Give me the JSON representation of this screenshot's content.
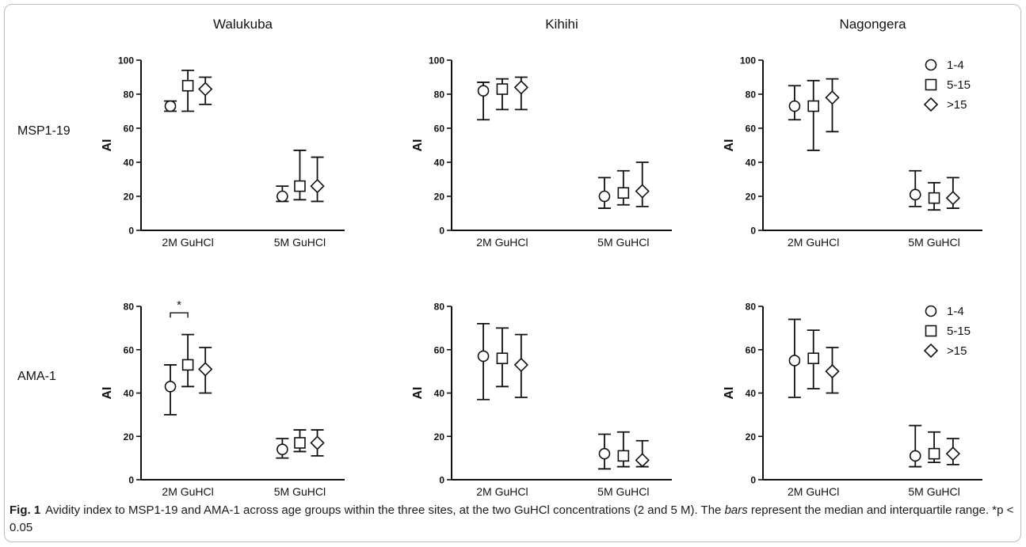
{
  "sites": [
    "Walukuba",
    "Kihihi",
    "Nagongera"
  ],
  "rows": [
    "MSP1-19",
    "AMA-1"
  ],
  "legend": [
    "1-4",
    "5-15",
    ">15"
  ],
  "legend_markers": [
    "circle-marker-icon",
    "square-marker-icon",
    "diamond-marker-icon"
  ],
  "caption": {
    "label": "Fig. 1",
    "part1": "Avidity index to MSP1-19 and AMA-1 across age groups within the three sites, at the two GuHCl concentrations (2 and 5 M). The ",
    "em": "bars",
    "part2": " represent the median and interquartile range. *p < 0.05"
  },
  "chart_data": [
    {
      "type": "scatter",
      "site": "Walukuba",
      "row": "MSP1-19",
      "ylabel": "AI",
      "categories": [
        "2M GuHCl",
        "5M GuHCl"
      ],
      "ylim": [
        0,
        100
      ],
      "yticks": [
        0,
        20,
        40,
        60,
        80,
        100
      ],
      "legend": false,
      "series": [
        {
          "name": "1-4",
          "median": [
            73,
            20
          ],
          "q1": [
            70,
            17
          ],
          "q3": [
            76,
            26
          ]
        },
        {
          "name": "5-15",
          "median": [
            85,
            26
          ],
          "q1": [
            70,
            18
          ],
          "q3": [
            94,
            47
          ]
        },
        {
          "name": ">15",
          "median": [
            83,
            26
          ],
          "q1": [
            74,
            17
          ],
          "q3": [
            90,
            43
          ]
        }
      ]
    },
    {
      "type": "scatter",
      "site": "Kihihi",
      "row": "MSP1-19",
      "ylabel": "AI",
      "categories": [
        "2M GuHCl",
        "5M GuHCl"
      ],
      "ylim": [
        0,
        100
      ],
      "yticks": [
        0,
        20,
        40,
        60,
        80,
        100
      ],
      "legend": false,
      "series": [
        {
          "name": "1-4",
          "median": [
            82,
            20
          ],
          "q1": [
            65,
            13
          ],
          "q3": [
            87,
            31
          ]
        },
        {
          "name": "5-15",
          "median": [
            83,
            22
          ],
          "q1": [
            71,
            15
          ],
          "q3": [
            89,
            35
          ]
        },
        {
          "name": ">15",
          "median": [
            84,
            23
          ],
          "q1": [
            71,
            14
          ],
          "q3": [
            90,
            40
          ]
        }
      ]
    },
    {
      "type": "scatter",
      "site": "Nagongera",
      "row": "MSP1-19",
      "ylabel": "AI",
      "categories": [
        "2M GuHCl",
        "5M GuHCl"
      ],
      "ylim": [
        0,
        100
      ],
      "yticks": [
        0,
        20,
        40,
        60,
        80,
        100
      ],
      "legend": true,
      "series": [
        {
          "name": "1-4",
          "median": [
            73,
            21
          ],
          "q1": [
            65,
            14
          ],
          "q3": [
            85,
            35
          ]
        },
        {
          "name": "5-15",
          "median": [
            73,
            19
          ],
          "q1": [
            47,
            12
          ],
          "q3": [
            88,
            28
          ]
        },
        {
          "name": ">15",
          "median": [
            78,
            19
          ],
          "q1": [
            58,
            13
          ],
          "q3": [
            89,
            31
          ]
        }
      ]
    },
    {
      "type": "scatter",
      "site": "Walukuba",
      "row": "AMA-1",
      "ylabel": "AI",
      "categories": [
        "2M GuHCl",
        "5M GuHCl"
      ],
      "ylim": [
        0,
        80
      ],
      "yticks": [
        0,
        20,
        40,
        60,
        80
      ],
      "legend": false,
      "significance": {
        "label": "*",
        "from": "1-4",
        "to": "5-15",
        "category": "2M GuHCl",
        "y": 77
      },
      "series": [
        {
          "name": "1-4",
          "median": [
            43,
            14
          ],
          "q1": [
            30,
            10
          ],
          "q3": [
            53,
            19
          ]
        },
        {
          "name": "5-15",
          "median": [
            53,
            17
          ],
          "q1": [
            43,
            13
          ],
          "q3": [
            67,
            23
          ]
        },
        {
          "name": ">15",
          "median": [
            51,
            17
          ],
          "q1": [
            40,
            11
          ],
          "q3": [
            61,
            23
          ]
        }
      ]
    },
    {
      "type": "scatter",
      "site": "Kihihi",
      "row": "AMA-1",
      "ylabel": "AI",
      "categories": [
        "2M GuHCl",
        "5M GuHCl"
      ],
      "ylim": [
        0,
        80
      ],
      "yticks": [
        0,
        20,
        40,
        60,
        80
      ],
      "legend": false,
      "series": [
        {
          "name": "1-4",
          "median": [
            57,
            12
          ],
          "q1": [
            37,
            5
          ],
          "q3": [
            72,
            21
          ]
        },
        {
          "name": "5-15",
          "median": [
            56,
            11
          ],
          "q1": [
            43,
            6
          ],
          "q3": [
            70,
            22
          ]
        },
        {
          "name": ">15",
          "median": [
            53,
            9
          ],
          "q1": [
            38,
            6
          ],
          "q3": [
            67,
            18
          ]
        }
      ]
    },
    {
      "type": "scatter",
      "site": "Nagongera",
      "row": "AMA-1",
      "ylabel": "AI",
      "categories": [
        "2M GuHCl",
        "5M GuHCl"
      ],
      "ylim": [
        0,
        80
      ],
      "yticks": [
        0,
        20,
        40,
        60,
        80
      ],
      "legend": true,
      "series": [
        {
          "name": "1-4",
          "median": [
            55,
            11
          ],
          "q1": [
            38,
            6
          ],
          "q3": [
            74,
            25
          ]
        },
        {
          "name": "5-15",
          "median": [
            56,
            12
          ],
          "q1": [
            42,
            8
          ],
          "q3": [
            69,
            22
          ]
        },
        {
          "name": ">15",
          "median": [
            50,
            12
          ],
          "q1": [
            40,
            7
          ],
          "q3": [
            61,
            19
          ]
        }
      ]
    }
  ]
}
